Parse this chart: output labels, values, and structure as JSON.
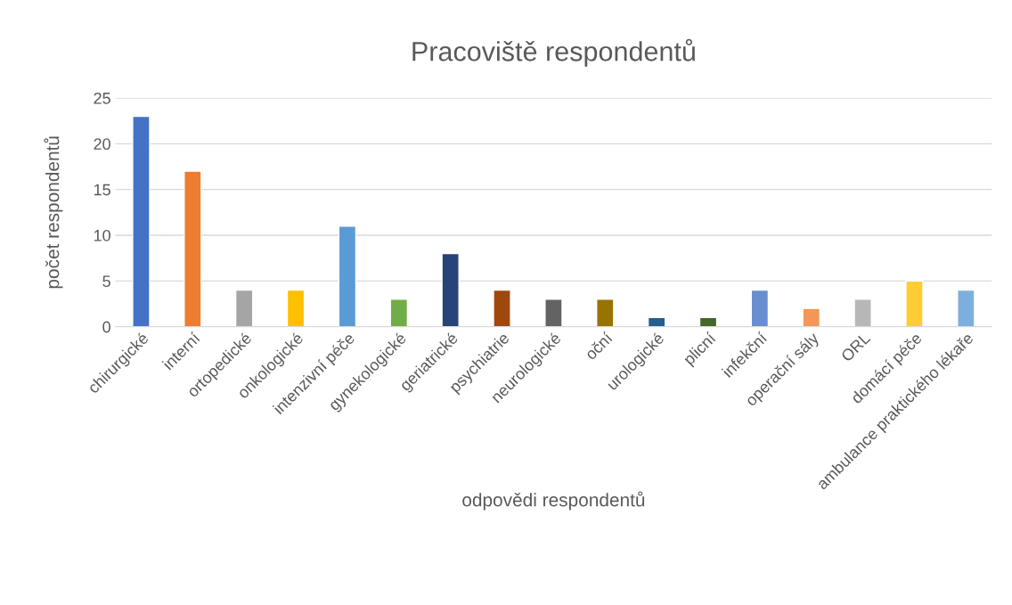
{
  "chart_data": {
    "type": "bar",
    "title": "Pracoviště respondentů",
    "xlabel": "odpovědi respondentů",
    "ylabel": "počet respondentů",
    "categories": [
      "chirurgické",
      "interní",
      "ortopedické",
      "onkologické",
      "intenzivní péče",
      "gynekologické",
      "geriatrické",
      "psychiatrie",
      "neurologické",
      "oční",
      "urologické",
      "plicní",
      "infekční",
      "operační sály",
      "ORL",
      "domácí péče",
      "ambulance praktického lékaře"
    ],
    "values": [
      23,
      17,
      4,
      4,
      11,
      3,
      8,
      4,
      3,
      3,
      1,
      1,
      4,
      2,
      3,
      5,
      4
    ],
    "colors": [
      "#4472c4",
      "#ed7d31",
      "#a5a5a5",
      "#ffc000",
      "#5b9bd5",
      "#70ad47",
      "#264478",
      "#9e480e",
      "#636363",
      "#997300",
      "#255e91",
      "#43682b",
      "#698ed0",
      "#f1975a",
      "#b7b7b7",
      "#ffcd33",
      "#7cafdd"
    ],
    "ylim": [
      0,
      25
    ],
    "yticks": [
      0,
      5,
      10,
      15,
      20,
      25
    ],
    "grid": "y",
    "legend": false
  }
}
